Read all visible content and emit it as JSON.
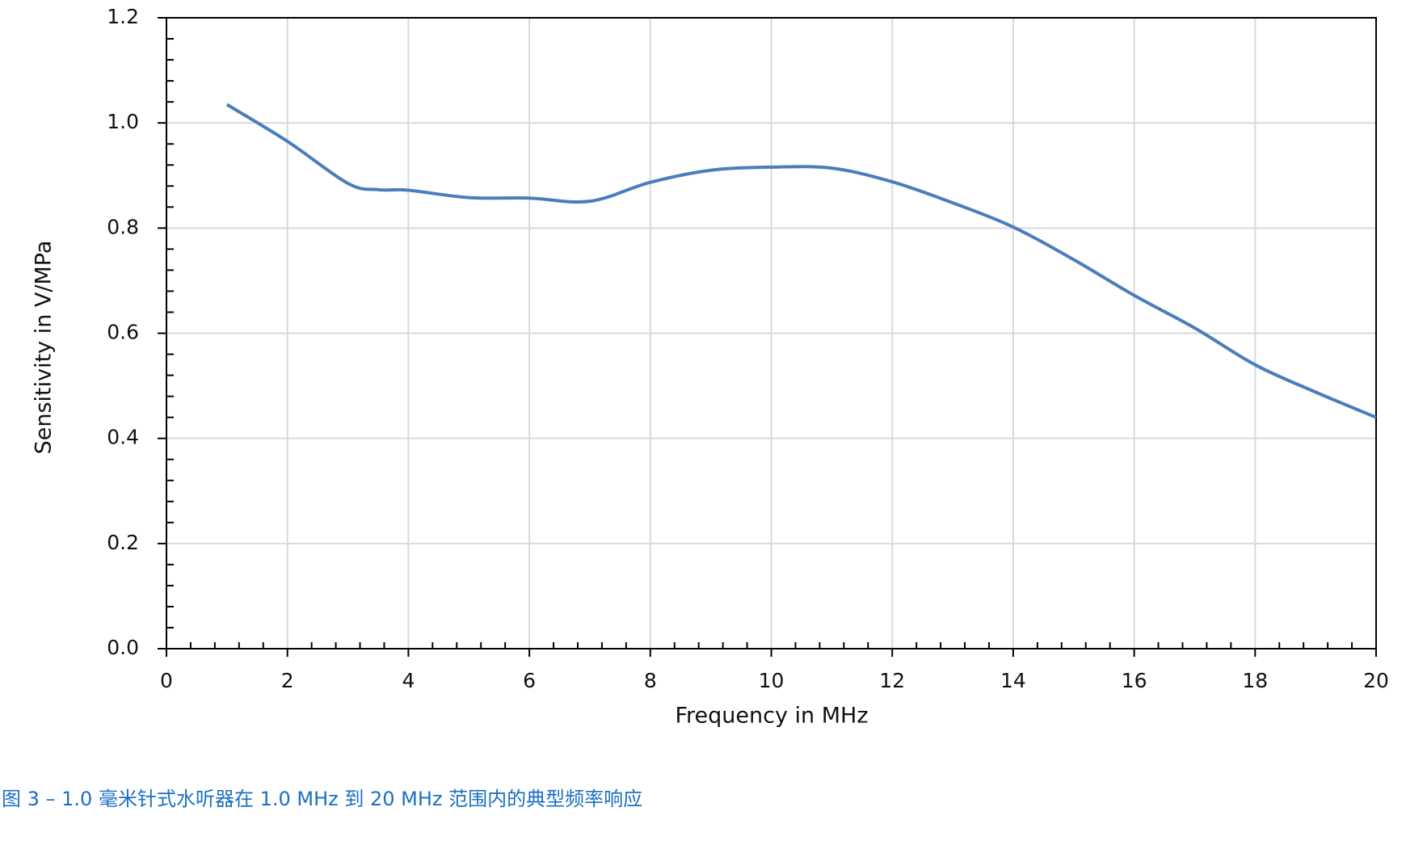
{
  "chart_data": {
    "type": "line",
    "xlabel": "Frequency in MHz",
    "ylabel": "Sensitivity in V/MPa",
    "caption": "图 3 – 1.0 毫米针式水听器在 1.0 MHz 到 20 MHz 范围内的典型频率响应",
    "series": [
      {
        "name": "Sensitivity",
        "color": "#4a7ebb",
        "x": [
          1,
          2,
          3,
          3.5,
          4,
          5,
          6,
          7,
          8,
          9,
          10,
          11,
          12,
          13,
          14,
          15,
          16,
          17,
          18,
          19,
          20
        ],
        "values": [
          1.035,
          0.965,
          0.885,
          0.873,
          0.872,
          0.858,
          0.857,
          0.851,
          0.887,
          0.91,
          0.916,
          0.914,
          0.888,
          0.848,
          0.802,
          0.74,
          0.672,
          0.61,
          0.54,
          0.488,
          0.44
        ]
      }
    ],
    "xlim": [
      0,
      20
    ],
    "xticks": [
      0,
      2,
      4,
      6,
      8,
      10,
      12,
      14,
      16,
      18,
      20
    ],
    "ylim": [
      0,
      1.2
    ],
    "yticks": [
      {
        "value": 0,
        "label": "0.0"
      },
      {
        "value": 0.2,
        "label": "0.2"
      },
      {
        "value": 0.4,
        "label": "0.4"
      },
      {
        "value": 0.6,
        "label": "0.6"
      },
      {
        "value": 0.8,
        "label": "0.8"
      },
      {
        "value": 1,
        "label": "1.0"
      },
      {
        "value": 1.2,
        "label": "1.2"
      }
    ],
    "grid": true
  }
}
